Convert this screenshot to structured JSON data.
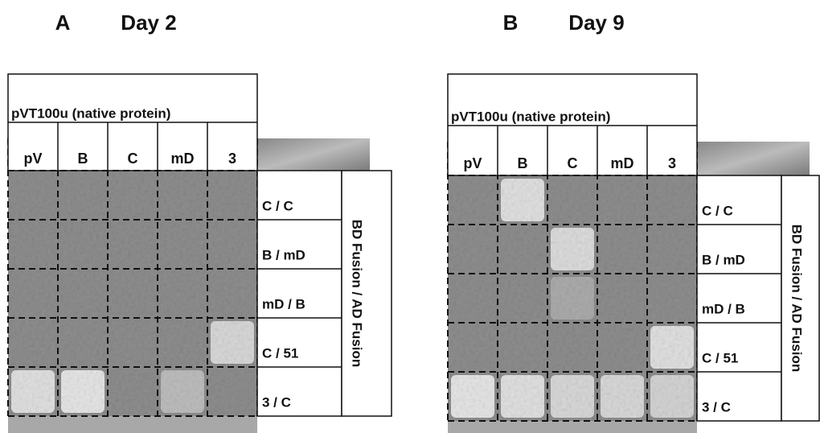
{
  "panels": [
    {
      "label": "A",
      "title": "Day 2",
      "header": "pVT100u (native protein)",
      "columns": [
        "pV",
        "B",
        "C",
        "mD",
        "3"
      ],
      "rows": [
        "C / C",
        "B / mD",
        "mD / B",
        "C / 51",
        "3 / C"
      ],
      "side_label": "BD Fusion / AD Fusion"
    },
    {
      "label": "B",
      "title": "Day 9",
      "header": "pVT100u (native protein)",
      "columns": [
        "pV",
        "B",
        "C",
        "mD",
        "3"
      ],
      "rows": [
        "C / C",
        "B / mD",
        "mD / B",
        "C / 51",
        "3 / C"
      ],
      "side_label": "BD Fusion / AD Fusion"
    }
  ]
}
